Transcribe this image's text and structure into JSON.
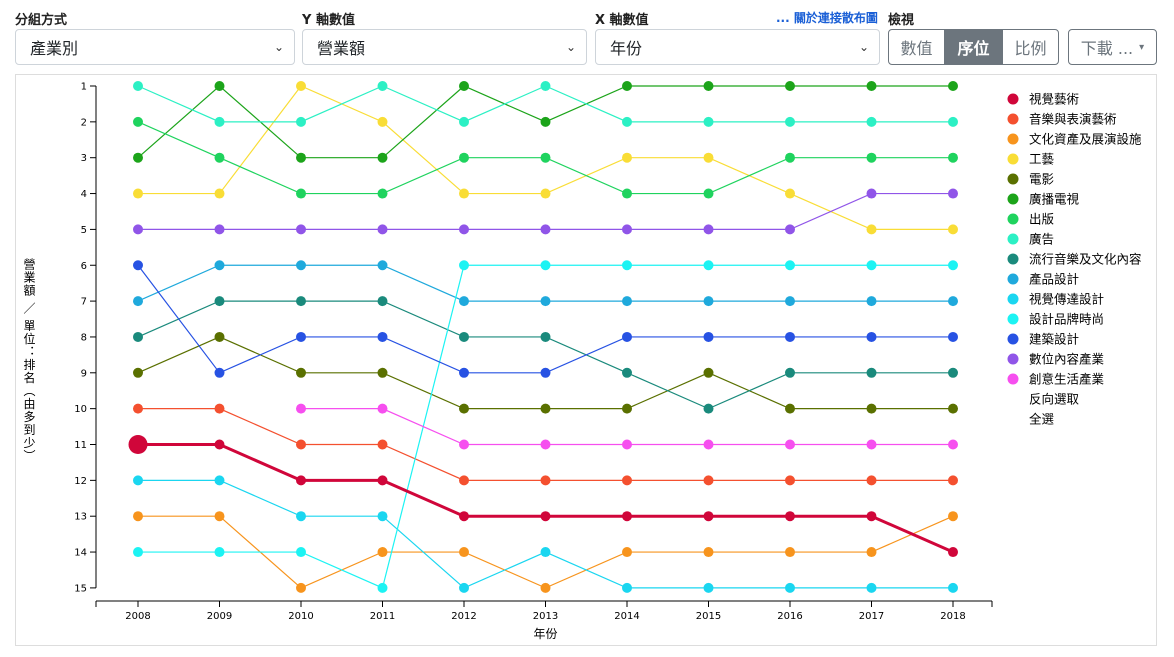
{
  "controls": {
    "group_label": "分組方式",
    "group_value": "產業別",
    "y_label": "Y 軸數值",
    "y_value": "營業額",
    "x_label": "X 軸數值",
    "x_value": "年份",
    "scatter_link": "... 關於連接散布圖",
    "view_label": "檢視",
    "view_buttons": [
      "數值",
      "序位",
      "比例"
    ],
    "view_active": "序位",
    "download_label": "下載 ...",
    "caret": "▾"
  },
  "legend_extra": {
    "invert": "反向選取",
    "select_all": "全選"
  },
  "chart_data": {
    "type": "line",
    "xlabel": "年份",
    "ylabel": "營業額 ／ 單位：排名（由多到少）",
    "x": [
      "2008",
      "2009",
      "2010",
      "2011",
      "2012",
      "2013",
      "2014",
      "2015",
      "2016",
      "2017",
      "2018"
    ],
    "yticks": [
      "1",
      "2",
      "3",
      "4",
      "5",
      "6",
      "7",
      "8",
      "9",
      "10",
      "11",
      "12",
      "13",
      "14",
      "15"
    ],
    "ylim": [
      1,
      15
    ],
    "y_inverted": true,
    "legend_position": "right",
    "highlighted_series": "視覺藝術",
    "series": [
      {
        "name": "視覺藝術",
        "color": "#d0063a",
        "values": [
          11,
          11,
          12,
          12,
          13,
          13,
          13,
          13,
          13,
          13,
          14
        ]
      },
      {
        "name": "音樂與表演藝術",
        "color": "#f4502f",
        "values": [
          10,
          10,
          11,
          11,
          12,
          12,
          12,
          12,
          12,
          12,
          12
        ]
      },
      {
        "name": "文化資產及展演設施",
        "color": "#f7941d",
        "values": [
          13,
          13,
          15,
          14,
          14,
          15,
          14,
          14,
          14,
          14,
          13
        ]
      },
      {
        "name": "工藝",
        "color": "#f9dd36",
        "values": [
          4,
          4,
          1,
          2,
          4,
          4,
          3,
          3,
          4,
          5,
          5
        ]
      },
      {
        "name": "電影",
        "color": "#5a7000",
        "values": [
          9,
          8,
          9,
          9,
          10,
          10,
          10,
          9,
          10,
          10,
          10
        ]
      },
      {
        "name": "廣播電視",
        "color": "#1ca41a",
        "values": [
          3,
          1,
          3,
          3,
          1,
          2,
          1,
          1,
          1,
          1,
          1
        ]
      },
      {
        "name": "出版",
        "color": "#1fd35e",
        "values": [
          2,
          3,
          4,
          4,
          3,
          3,
          4,
          4,
          3,
          3,
          3
        ]
      },
      {
        "name": "廣告",
        "color": "#2cf0c4",
        "values": [
          1,
          2,
          2,
          1,
          2,
          1,
          2,
          2,
          2,
          2,
          2
        ]
      },
      {
        "name": "流行音樂及文化內容",
        "color": "#1a8a7c",
        "values": [
          8,
          7,
          7,
          7,
          8,
          8,
          9,
          10,
          9,
          9,
          9
        ]
      },
      {
        "name": "產品設計",
        "color": "#1fa9dc",
        "values": [
          7,
          6,
          6,
          6,
          7,
          7,
          7,
          7,
          7,
          7,
          7
        ]
      },
      {
        "name": "視覺傳達設計",
        "color": "#1ad6f0",
        "values": [
          12,
          12,
          13,
          13,
          15,
          14,
          15,
          15,
          15,
          15,
          15
        ]
      },
      {
        "name": "設計品牌時尚",
        "color": "#1cf3f3",
        "values": [
          14,
          14,
          14,
          15,
          6,
          6,
          6,
          6,
          6,
          6,
          6
        ]
      },
      {
        "name": "建築設計",
        "color": "#2752e3",
        "values": [
          6,
          9,
          8,
          8,
          9,
          9,
          8,
          8,
          8,
          8,
          8
        ]
      },
      {
        "name": "數位內容產業",
        "color": "#9055e8",
        "values": [
          5,
          5,
          5,
          5,
          5,
          5,
          5,
          5,
          5,
          4,
          4
        ]
      },
      {
        "name": "創意生活產業",
        "color": "#f64fef",
        "values": [
          null,
          null,
          10,
          10,
          11,
          11,
          11,
          11,
          11,
          11,
          11
        ]
      }
    ]
  }
}
